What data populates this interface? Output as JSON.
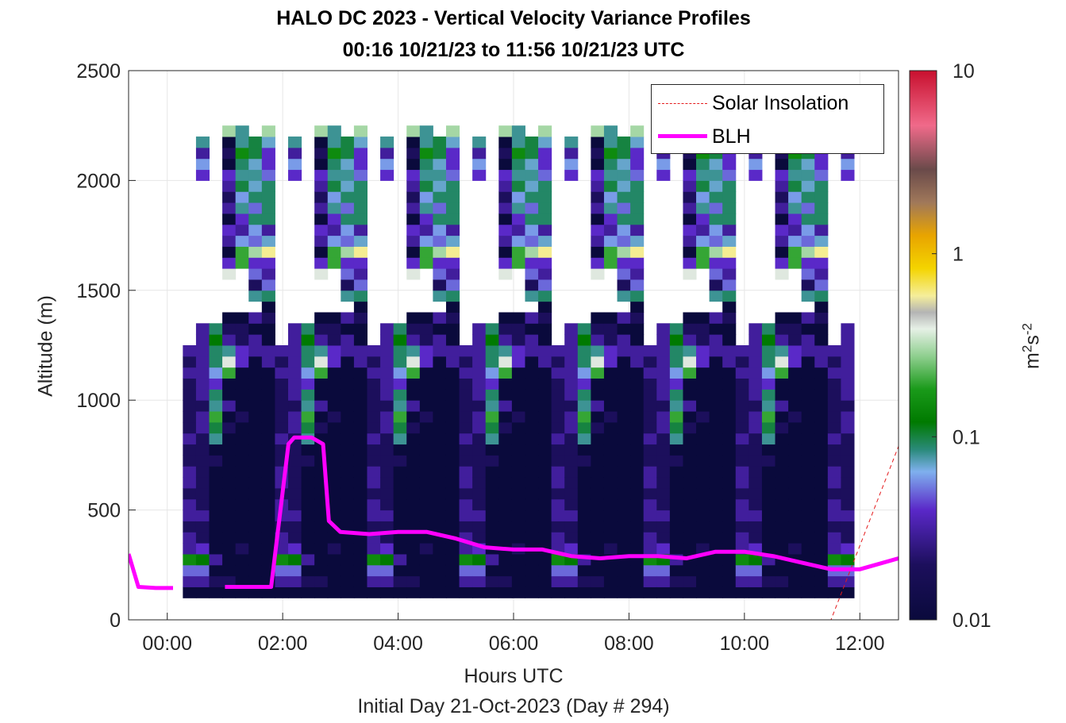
{
  "chart_data": {
    "type": "heatmap",
    "title": "HALO DC 2023 - Vertical Velocity Variance Profiles",
    "subtitle": "00:16 10/21/23 to 11:56 10/21/23  UTC",
    "xlabel": "Hours UTC",
    "xsublabel": "Initial Day 21-Oct-2023 (Day # 294)",
    "ylabel": "Altitude (m)",
    "colorbar_label": "m2s-2",
    "colorbar_scale": "log",
    "colorbar_range": [
      0.01,
      10
    ],
    "colorbar_ticks": [
      "0.01",
      "0.1",
      "1",
      "10"
    ],
    "x_ticks": [
      "00:00",
      "02:00",
      "04:00",
      "06:00",
      "08:00",
      "10:00",
      "12:00"
    ],
    "x_tick_hours": [
      0,
      2,
      4,
      6,
      8,
      10,
      12
    ],
    "y_ticks": [
      "0",
      "500",
      "1000",
      "1500",
      "2000",
      "2500"
    ],
    "y_tick_values": [
      0,
      500,
      1000,
      1500,
      2000,
      2500
    ],
    "xlim": [
      -0.67,
      12.67
    ],
    "ylim": [
      0,
      2500
    ],
    "grid": true,
    "legend_position": "top-right",
    "legend": [
      {
        "label": "Solar Insolation",
        "color": "#e41a1c",
        "style": "dashed"
      },
      {
        "label": "BLH",
        "color": "#ff00ff",
        "style": "solid"
      }
    ],
    "variance_columns": {
      "start_hour": 0.27,
      "step_hours": 0.1667,
      "bin_bottom_m": 100,
      "bin_height_m": 50,
      "columns": [
        [
          0.01,
          0.03,
          0.05,
          0.15,
          0.03,
          0.03,
          0.02,
          0.03,
          0.03,
          0.02,
          0.03,
          0.03,
          0.02,
          0.02,
          0.03,
          0.02,
          0.02,
          0.02,
          0.02,
          0.02,
          0.03,
          0.02,
          0.03
        ],
        [
          0.01,
          0.03,
          0.05,
          0.12,
          0.04,
          0.02,
          0.02,
          0.03,
          0.02,
          0.02,
          0.02,
          0.02,
          0.02,
          0.02,
          0.02,
          0.03,
          0.03,
          0.02,
          0.03,
          0.03,
          0.03,
          0.03,
          0.03,
          0.03,
          0.03,
          null,
          null,
          null,
          null,
          null,
          null,
          null,
          null,
          null,
          null,
          null,
          null,
          null,
          0.04,
          0.06,
          0.03,
          0.08
        ],
        [
          0.01,
          0.02,
          0.01,
          0.03,
          0.01,
          0.01,
          0.01,
          0.01,
          0.01,
          0.01,
          0.01,
          0.01,
          0.02,
          0.01,
          0.08,
          0.1,
          0.2,
          0.08,
          0.09,
          0.04,
          0.06,
          0.09,
          0.09,
          0.12,
          0.09
        ],
        [
          0.01,
          0.02,
          0.01,
          0.01,
          0.01,
          0.01,
          0.01,
          0.01,
          0.01,
          0.01,
          0.01,
          0.01,
          0.01,
          0.01,
          0.01,
          0.02,
          0.01,
          0.03,
          0.01,
          0.01,
          0.2,
          0.4,
          0.08,
          0.03,
          0.02,
          0.01,
          null,
          null,
          null,
          0.4,
          0.04,
          0.01,
          0.03,
          0.04,
          0.01,
          0.03,
          0.02,
          0.03,
          0.04,
          0.01,
          0.02,
          0.01,
          0.3
        ],
        [
          0.01,
          0.01,
          0.01,
          0.01,
          0.02,
          0.01,
          0.01,
          0.01,
          0.01,
          0.01,
          0.01,
          0.01,
          0.01,
          0.01,
          0.01,
          0.01,
          0.02,
          0.01,
          0.01,
          0.01,
          0.01,
          0.04,
          0.04,
          0.02,
          0.02,
          0.01,
          null,
          null,
          null,
          null,
          0.2,
          0.2,
          0.06,
          0.03,
          0.04,
          0.08,
          0.06,
          0.1,
          0.08,
          0.09,
          0.15,
          0.08,
          0.08
        ],
        [
          0.01,
          0.01,
          0.01,
          0.01,
          0.01,
          0.01,
          0.01,
          0.01,
          0.01,
          0.01,
          0.01,
          0.01,
          0.01,
          0.01,
          0.01,
          0.01,
          0.01,
          0.01,
          0.01,
          0.01,
          0.01,
          0.01,
          0.03,
          0.03,
          0.01,
          0.03,
          null,
          0.08,
          0.02,
          0.05,
          0.04,
          0.3,
          0.05,
          0.06,
          0.09,
          0.05,
          0.09,
          0.07,
          0.08,
          0.07,
          0.1,
          0.1
        ],
        [
          0.01,
          0.01,
          0.01,
          0.01,
          0.01,
          0.01,
          0.01,
          0.01,
          0.01,
          0.01,
          0.01,
          0.01,
          0.01,
          0.01,
          0.01,
          0.01,
          0.01,
          0.01,
          0.01,
          0.01,
          0.01,
          0.03,
          0.03,
          0.01,
          0.01,
          0.02,
          0.01,
          0.09,
          0.05,
          0.03,
          0.04,
          0.6,
          0.07,
          0.03,
          0.09,
          0.09,
          0.09,
          0.09,
          0.05,
          0.04,
          0.04,
          0.07,
          0.3
        ]
      ]
    },
    "blh": {
      "hours": [
        -0.67,
        -0.5,
        -0.2,
        0.1,
        0.5,
        1.0,
        1.5,
        1.8,
        2.1,
        2.2,
        2.5,
        2.7,
        2.8,
        3.0,
        3.5,
        4.0,
        4.5,
        5.0,
        5.5,
        6.0,
        6.5,
        7.0,
        7.5,
        8.0,
        8.5,
        9.0,
        9.5,
        10.0,
        10.5,
        11.0,
        11.5,
        12.0,
        12.67
      ],
      "altitude_m": [
        300,
        150,
        145,
        145,
        null,
        150,
        150,
        150,
        800,
        830,
        830,
        800,
        450,
        400,
        390,
        400,
        400,
        370,
        330,
        320,
        320,
        290,
        280,
        290,
        290,
        280,
        310,
        310,
        290,
        260,
        230,
        230,
        280
      ]
    },
    "solar_insolation": {
      "hours": [
        -0.67,
        11.5,
        12.67
      ],
      "level_m": [
        0,
        0,
        790
      ]
    }
  }
}
